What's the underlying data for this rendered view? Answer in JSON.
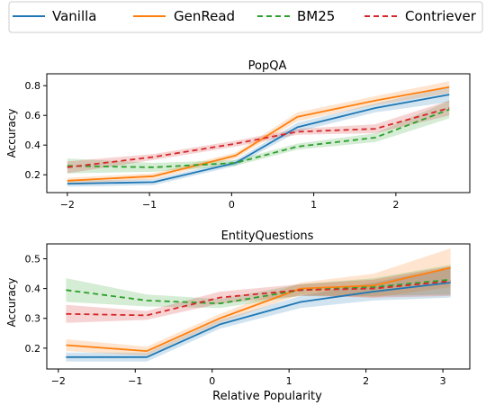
{
  "legend": {
    "placement": "top (outside, single row)",
    "entries": [
      {
        "label": "Vanilla",
        "color": "#1f77b4",
        "dash": "solid"
      },
      {
        "label": "GenRead",
        "color": "#ff7f0e",
        "dash": "solid"
      },
      {
        "label": "BM25",
        "color": "#2ca02c",
        "dash": "dashed"
      },
      {
        "label": "Contriever",
        "color": "#d62728",
        "dash": "dashed"
      }
    ]
  },
  "shared_xlabel": "Relative Popularity",
  "chart_data": [
    {
      "type": "line",
      "title": "PopQA",
      "xlabel": "",
      "ylabel": "Accuracy",
      "xlim": [
        -2.25,
        2.9
      ],
      "ylim": [
        0.08,
        0.88
      ],
      "xticks": [
        -2,
        -1,
        0,
        1,
        2
      ],
      "xtick_labels": [
        "−2",
        "−1",
        "0",
        "1",
        "2"
      ],
      "yticks": [
        0.2,
        0.4,
        0.6,
        0.8
      ],
      "ytick_labels": [
        "0.2",
        "0.4",
        "0.6",
        "0.8"
      ],
      "grid": false,
      "series": [
        {
          "name": "Vanilla",
          "x": [
            -2,
            -0.95,
            0.05,
            0.8,
            1.75,
            2.65
          ],
          "y": [
            0.14,
            0.15,
            0.28,
            0.52,
            0.65,
            0.74
          ],
          "band": [
            0.02,
            0.02,
            0.02,
            0.03,
            0.03,
            0.05
          ]
        },
        {
          "name": "GenRead",
          "x": [
            -2,
            -0.95,
            0.05,
            0.8,
            1.75,
            2.65
          ],
          "y": [
            0.16,
            0.19,
            0.33,
            0.59,
            0.7,
            0.79
          ],
          "band": [
            0.02,
            0.02,
            0.02,
            0.03,
            0.03,
            0.04
          ]
        },
        {
          "name": "BM25",
          "x": [
            -2,
            -0.95,
            0.05,
            0.8,
            1.75,
            2.65
          ],
          "y": [
            0.26,
            0.25,
            0.28,
            0.39,
            0.45,
            0.64
          ],
          "band": [
            0.05,
            0.03,
            0.02,
            0.02,
            0.03,
            0.06
          ]
        },
        {
          "name": "Contriever",
          "x": [
            -2,
            -0.95,
            0.05,
            0.8,
            1.75,
            2.65
          ],
          "y": [
            0.25,
            0.32,
            0.41,
            0.49,
            0.51,
            0.65
          ],
          "band": [
            0.04,
            0.02,
            0.02,
            0.02,
            0.03,
            0.05
          ]
        }
      ]
    },
    {
      "type": "line",
      "title": "EntityQuestions",
      "xlabel": "Relative Popularity",
      "ylabel": "Accuracy",
      "xlim": [
        -2.15,
        3.35
      ],
      "ylim": [
        0.13,
        0.55
      ],
      "xticks": [
        -2,
        -1,
        0,
        1,
        2,
        3
      ],
      "xtick_labels": [
        "−2",
        "−1",
        "0",
        "1",
        "2",
        "3"
      ],
      "yticks": [
        0.2,
        0.3,
        0.4,
        0.5
      ],
      "ytick_labels": [
        "0.2",
        "0.3",
        "0.4",
        "0.5"
      ],
      "grid": false,
      "series": [
        {
          "name": "Vanilla",
          "x": [
            -1.9,
            -0.85,
            0.1,
            1.15,
            2.1,
            3.1
          ],
          "y": [
            0.17,
            0.17,
            0.28,
            0.355,
            0.39,
            0.42
          ],
          "band": [
            0.015,
            0.015,
            0.015,
            0.02,
            0.03,
            0.05
          ]
        },
        {
          "name": "GenRead",
          "x": [
            -1.9,
            -0.85,
            0.1,
            1.15,
            2.1,
            3.1
          ],
          "y": [
            0.21,
            0.19,
            0.3,
            0.4,
            0.41,
            0.47
          ],
          "band": [
            0.02,
            0.015,
            0.015,
            0.02,
            0.04,
            0.065
          ]
        },
        {
          "name": "BM25",
          "x": [
            -1.9,
            -0.85,
            0.1,
            1.15,
            2.1,
            3.1
          ],
          "y": [
            0.395,
            0.36,
            0.35,
            0.395,
            0.405,
            0.43
          ],
          "band": [
            0.04,
            0.02,
            0.015,
            0.02,
            0.03,
            0.05
          ]
        },
        {
          "name": "Contriever",
          "x": [
            -1.9,
            -0.85,
            0.1,
            1.15,
            2.1,
            3.1
          ],
          "y": [
            0.315,
            0.31,
            0.37,
            0.395,
            0.4,
            0.425
          ],
          "band": [
            0.03,
            0.015,
            0.02,
            0.02,
            0.03,
            0.05
          ]
        }
      ]
    }
  ]
}
